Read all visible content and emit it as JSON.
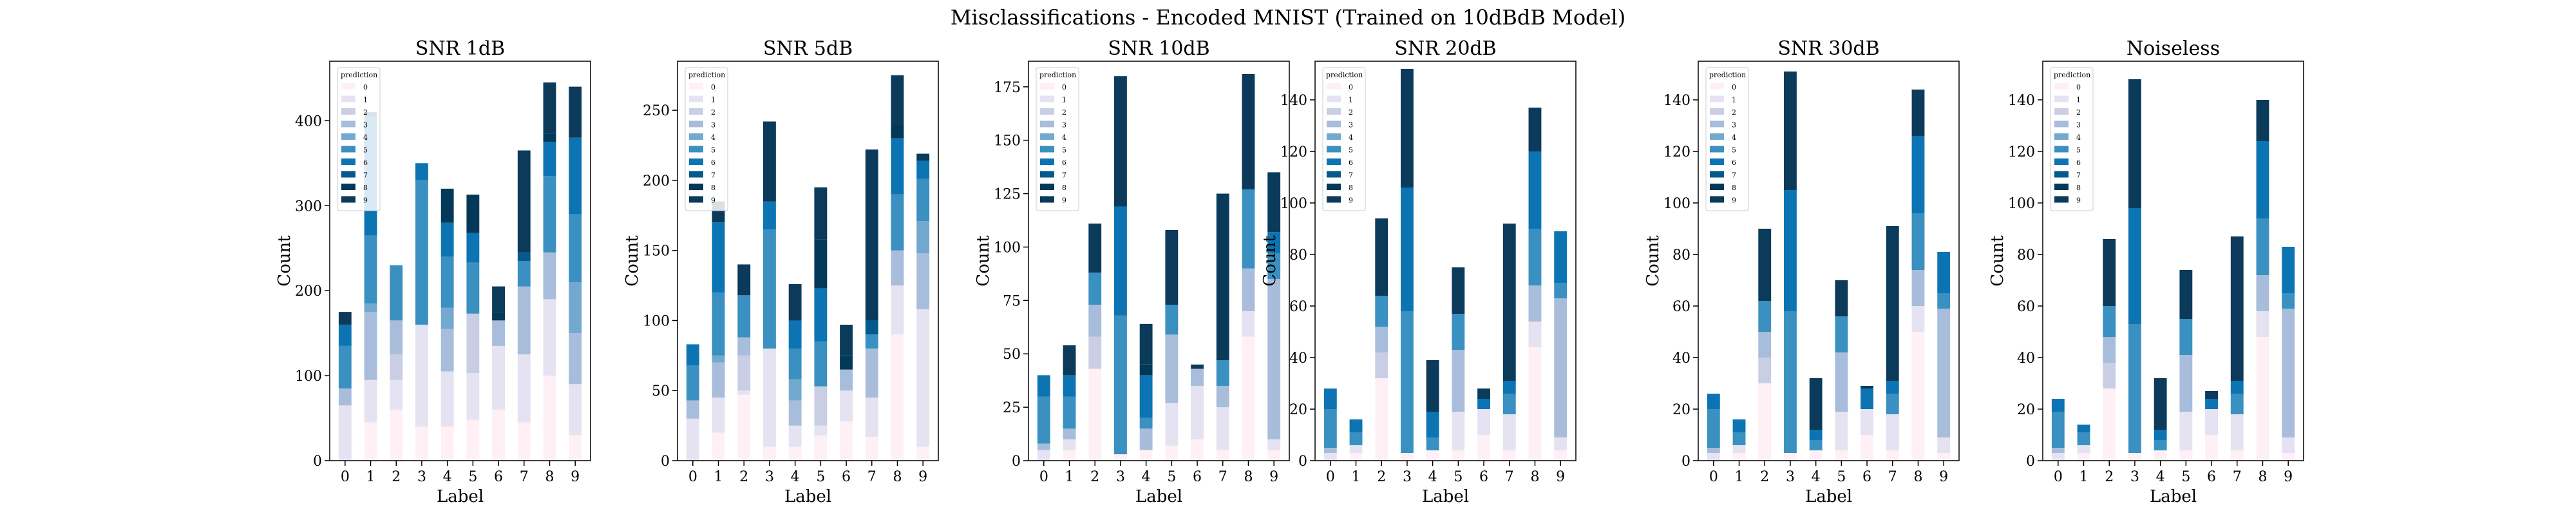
{
  "suptitle": "Misclassifications - Encoded MNIST (Trained on 10dBdB Model)",
  "legend_title": "prediction",
  "colors": [
    "#fff0f6",
    "#e5e3f1",
    "#c9cee4",
    "#a7bddb",
    "#74a9cf",
    "#3a90c0",
    "#0c74b2",
    "#045a8d",
    "#023858",
    "#0b3a5a"
  ],
  "chart_data": [
    {
      "type": "bar",
      "stacked": true,
      "title": "SNR 1dB",
      "xlabel": "Label",
      "ylabel": "Count",
      "categories": [
        "0",
        "1",
        "2",
        "3",
        "4",
        "5",
        "6",
        "7",
        "8",
        "9"
      ],
      "ylim": [
        0,
        470
      ],
      "yticks": [
        0,
        100,
        200,
        300,
        400
      ],
      "legend": "top-left",
      "series": [
        {
          "name": "0",
          "values": [
            0,
            45,
            60,
            40,
            40,
            48,
            60,
            45,
            100,
            30
          ]
        },
        {
          "name": "1",
          "values": [
            65,
            50,
            35,
            120,
            65,
            55,
            75,
            80,
            90,
            60
          ]
        },
        {
          "name": "2",
          "values": [
            0,
            0,
            30,
            0,
            0,
            70,
            0,
            0,
            0,
            0
          ]
        },
        {
          "name": "3",
          "values": [
            20,
            80,
            40,
            0,
            50,
            0,
            30,
            80,
            55,
            60
          ]
        },
        {
          "name": "4",
          "values": [
            0,
            10,
            0,
            0,
            25,
            0,
            0,
            0,
            0,
            60
          ]
        },
        {
          "name": "5",
          "values": [
            50,
            80,
            65,
            170,
            60,
            60,
            0,
            30,
            90,
            80
          ]
        },
        {
          "name": "6",
          "values": [
            25,
            140,
            0,
            20,
            40,
            35,
            0,
            0,
            40,
            90
          ]
        },
        {
          "name": "7",
          "values": [
            0,
            0,
            0,
            0,
            0,
            0,
            0,
            10,
            0,
            0
          ]
        },
        {
          "name": "8",
          "values": [
            0,
            0,
            0,
            0,
            40,
            45,
            10,
            0,
            10,
            0
          ]
        },
        {
          "name": "9",
          "values": [
            15,
            5,
            0,
            0,
            0,
            0,
            30,
            120,
            60,
            60
          ]
        }
      ]
    },
    {
      "type": "bar",
      "stacked": true,
      "title": "SNR 5dB",
      "xlabel": "Label",
      "ylabel": "Count",
      "categories": [
        "0",
        "1",
        "2",
        "3",
        "4",
        "5",
        "6",
        "7",
        "8",
        "9"
      ],
      "ylim": [
        0,
        285
      ],
      "yticks": [
        0,
        50,
        100,
        150,
        200,
        250
      ],
      "legend": "top-left",
      "series": [
        {
          "name": "0",
          "values": [
            0,
            20,
            47,
            10,
            10,
            18,
            28,
            17,
            90,
            10
          ]
        },
        {
          "name": "1",
          "values": [
            30,
            25,
            3,
            70,
            15,
            7,
            22,
            28,
            35,
            98
          ]
        },
        {
          "name": "2",
          "values": [
            0,
            0,
            25,
            0,
            0,
            28,
            0,
            0,
            0,
            0
          ]
        },
        {
          "name": "3",
          "values": [
            13,
            25,
            13,
            0,
            18,
            0,
            15,
            35,
            25,
            40
          ]
        },
        {
          "name": "4",
          "values": [
            0,
            5,
            0,
            0,
            15,
            0,
            0,
            0,
            0,
            23
          ]
        },
        {
          "name": "5",
          "values": [
            25,
            45,
            30,
            85,
            22,
            32,
            0,
            10,
            40,
            30
          ]
        },
        {
          "name": "6",
          "values": [
            15,
            50,
            0,
            20,
            20,
            38,
            0,
            0,
            40,
            13
          ]
        },
        {
          "name": "7",
          "values": [
            0,
            0,
            0,
            0,
            0,
            0,
            0,
            10,
            0,
            0
          ]
        },
        {
          "name": "8",
          "values": [
            0,
            0,
            0,
            0,
            0,
            35,
            10,
            0,
            10,
            0
          ]
        },
        {
          "name": "9",
          "values": [
            0,
            15,
            22,
            57,
            26,
            37,
            22,
            122,
            35,
            5
          ]
        }
      ]
    },
    {
      "type": "bar",
      "stacked": true,
      "title": "SNR 10dB",
      "xlabel": "Label",
      "ylabel": "Count",
      "categories": [
        "0",
        "1",
        "2",
        "3",
        "4",
        "5",
        "6",
        "7",
        "8",
        "9"
      ],
      "ylim": [
        0,
        187
      ],
      "yticks": [
        0,
        25,
        50,
        75,
        100,
        125,
        150,
        175
      ],
      "legend": "top-left",
      "series": [
        {
          "name": "0",
          "values": [
            0,
            5,
            43,
            3,
            5,
            7,
            10,
            5,
            58,
            5
          ]
        },
        {
          "name": "1",
          "values": [
            5,
            5,
            0,
            0,
            0,
            20,
            25,
            20,
            12,
            5
          ]
        },
        {
          "name": "2",
          "values": [
            0,
            0,
            15,
            0,
            0,
            0,
            0,
            0,
            0,
            0
          ]
        },
        {
          "name": "3",
          "values": [
            3,
            5,
            15,
            0,
            10,
            32,
            8,
            10,
            20,
            75
          ]
        },
        {
          "name": "4",
          "values": [
            0,
            0,
            0,
            0,
            0,
            0,
            0,
            0,
            0,
            0
          ]
        },
        {
          "name": "5",
          "values": [
            22,
            15,
            15,
            65,
            5,
            14,
            0,
            12,
            37,
            12
          ]
        },
        {
          "name": "6",
          "values": [
            10,
            10,
            0,
            51,
            20,
            0,
            0,
            0,
            0,
            10
          ]
        },
        {
          "name": "7",
          "values": [
            0,
            0,
            0,
            0,
            0,
            0,
            0,
            0,
            0,
            0
          ]
        },
        {
          "name": "8",
          "values": [
            0,
            0,
            0,
            0,
            5,
            0,
            0,
            0,
            0,
            0
          ]
        },
        {
          "name": "9",
          "values": [
            0,
            14,
            23,
            61,
            19,
            35,
            2,
            78,
            54,
            28
          ]
        }
      ]
    },
    {
      "type": "bar",
      "stacked": true,
      "title": "SNR 20dB",
      "xlabel": "Label",
      "ylabel": "Count",
      "categories": [
        "0",
        "1",
        "2",
        "3",
        "4",
        "5",
        "6",
        "7",
        "8",
        "9"
      ],
      "ylim": [
        0,
        155
      ],
      "yticks": [
        0,
        20,
        40,
        60,
        80,
        100,
        120,
        140
      ],
      "legend": "top-left",
      "series": [
        {
          "name": "0",
          "values": [
            0,
            3,
            32,
            3,
            4,
            4,
            10,
            4,
            44,
            4
          ]
        },
        {
          "name": "1",
          "values": [
            3,
            3,
            0,
            0,
            0,
            15,
            10,
            14,
            10,
            5
          ]
        },
        {
          "name": "2",
          "values": [
            0,
            0,
            10,
            0,
            0,
            0,
            0,
            0,
            0,
            0
          ]
        },
        {
          "name": "3",
          "values": [
            2,
            0,
            10,
            0,
            0,
            24,
            0,
            0,
            14,
            54
          ]
        },
        {
          "name": "4",
          "values": [
            0,
            0,
            0,
            0,
            0,
            0,
            0,
            0,
            0,
            0
          ]
        },
        {
          "name": "5",
          "values": [
            15,
            5,
            12,
            55,
            5,
            14,
            0,
            8,
            22,
            6
          ]
        },
        {
          "name": "6",
          "values": [
            8,
            5,
            0,
            48,
            10,
            0,
            4,
            5,
            30,
            20
          ]
        },
        {
          "name": "7",
          "values": [
            0,
            0,
            0,
            0,
            0,
            0,
            0,
            0,
            0,
            0
          ]
        },
        {
          "name": "8",
          "values": [
            0,
            0,
            0,
            0,
            0,
            0,
            0,
            0,
            0,
            0
          ]
        },
        {
          "name": "9",
          "values": [
            0,
            0,
            30,
            46,
            20,
            18,
            4,
            61,
            17,
            0
          ]
        }
      ]
    },
    {
      "type": "bar",
      "stacked": true,
      "title": "SNR 30dB",
      "xlabel": "Label",
      "ylabel": "Count",
      "categories": [
        "0",
        "1",
        "2",
        "3",
        "4",
        "5",
        "6",
        "7",
        "8",
        "9"
      ],
      "ylim": [
        0,
        155
      ],
      "yticks": [
        0,
        20,
        40,
        60,
        80,
        100,
        120,
        140
      ],
      "legend": "top-left",
      "series": [
        {
          "name": "0",
          "values": [
            0,
            3,
            30,
            3,
            4,
            4,
            10,
            4,
            50,
            3
          ]
        },
        {
          "name": "1",
          "values": [
            3,
            3,
            0,
            0,
            0,
            15,
            10,
            14,
            10,
            6
          ]
        },
        {
          "name": "2",
          "values": [
            0,
            0,
            10,
            0,
            0,
            0,
            0,
            0,
            0,
            0
          ]
        },
        {
          "name": "3",
          "values": [
            2,
            0,
            10,
            0,
            0,
            23,
            0,
            0,
            14,
            50
          ]
        },
        {
          "name": "4",
          "values": [
            0,
            0,
            0,
            0,
            0,
            0,
            0,
            0,
            0,
            0
          ]
        },
        {
          "name": "5",
          "values": [
            15,
            5,
            12,
            55,
            4,
            14,
            0,
            8,
            22,
            6
          ]
        },
        {
          "name": "6",
          "values": [
            6,
            5,
            0,
            47,
            4,
            0,
            8,
            5,
            30,
            16
          ]
        },
        {
          "name": "7",
          "values": [
            0,
            0,
            0,
            0,
            0,
            0,
            0,
            0,
            0,
            0
          ]
        },
        {
          "name": "8",
          "values": [
            0,
            0,
            0,
            0,
            0,
            0,
            0,
            0,
            0,
            0
          ]
        },
        {
          "name": "9",
          "values": [
            0,
            0,
            28,
            46,
            20,
            14,
            1,
            60,
            18,
            0
          ]
        }
      ]
    },
    {
      "type": "bar",
      "stacked": true,
      "title": "Noiseless",
      "xlabel": "Label",
      "ylabel": "Count",
      "categories": [
        "0",
        "1",
        "2",
        "3",
        "4",
        "5",
        "6",
        "7",
        "8",
        "9"
      ],
      "ylim": [
        0,
        155
      ],
      "yticks": [
        0,
        20,
        40,
        60,
        80,
        100,
        120,
        140
      ],
      "legend": "top-left",
      "series": [
        {
          "name": "0",
          "values": [
            0,
            3,
            28,
            3,
            4,
            4,
            10,
            4,
            48,
            3
          ]
        },
        {
          "name": "1",
          "values": [
            3,
            3,
            0,
            0,
            0,
            15,
            10,
            14,
            10,
            6
          ]
        },
        {
          "name": "2",
          "values": [
            0,
            0,
            10,
            0,
            0,
            0,
            0,
            0,
            0,
            0
          ]
        },
        {
          "name": "3",
          "values": [
            2,
            0,
            10,
            0,
            0,
            22,
            0,
            0,
            14,
            50
          ]
        },
        {
          "name": "4",
          "values": [
            0,
            0,
            0,
            0,
            0,
            0,
            0,
            0,
            0,
            0
          ]
        },
        {
          "name": "5",
          "values": [
            14,
            5,
            12,
            50,
            4,
            14,
            0,
            8,
            22,
            6
          ]
        },
        {
          "name": "6",
          "values": [
            5,
            3,
            0,
            45,
            4,
            0,
            4,
            5,
            30,
            18
          ]
        },
        {
          "name": "7",
          "values": [
            0,
            0,
            0,
            0,
            0,
            0,
            0,
            0,
            0,
            0
          ]
        },
        {
          "name": "8",
          "values": [
            0,
            0,
            0,
            0,
            0,
            0,
            0,
            0,
            0,
            0
          ]
        },
        {
          "name": "9",
          "values": [
            0,
            0,
            26,
            50,
            20,
            19,
            3,
            56,
            16,
            0
          ]
        }
      ]
    }
  ]
}
